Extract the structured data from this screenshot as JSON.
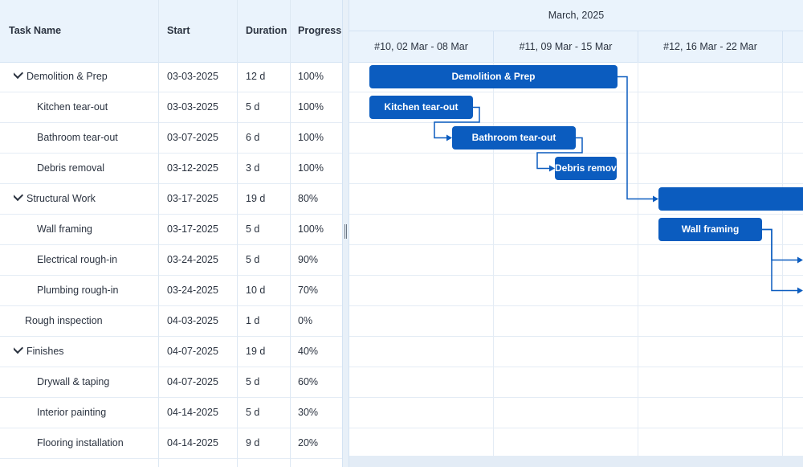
{
  "grid": {
    "columns": [
      {
        "key": "name",
        "label": "Task Name"
      },
      {
        "key": "start",
        "label": "Start"
      },
      {
        "key": "duration",
        "label": "Duration"
      },
      {
        "key": "progress",
        "label": "Progress"
      }
    ],
    "rows": [
      {
        "name": "Demolition & Prep",
        "start": "03-03-2025",
        "duration": "12 d",
        "progress": "100%",
        "level": 0,
        "parent": true
      },
      {
        "name": "Kitchen tear-out",
        "start": "03-03-2025",
        "duration": "5 d",
        "progress": "100%",
        "level": 1,
        "parent": false
      },
      {
        "name": "Bathroom tear-out",
        "start": "03-07-2025",
        "duration": "6 d",
        "progress": "100%",
        "level": 1,
        "parent": false
      },
      {
        "name": "Debris removal",
        "start": "03-12-2025",
        "duration": "3 d",
        "progress": "100%",
        "level": 1,
        "parent": false
      },
      {
        "name": "Structural Work",
        "start": "03-17-2025",
        "duration": "19 d",
        "progress": "80%",
        "level": 0,
        "parent": true
      },
      {
        "name": "Wall framing",
        "start": "03-17-2025",
        "duration": "5 d",
        "progress": "100%",
        "level": 1,
        "parent": false
      },
      {
        "name": "Electrical rough-in",
        "start": "03-24-2025",
        "duration": "5 d",
        "progress": "90%",
        "level": 1,
        "parent": false
      },
      {
        "name": "Plumbing rough-in",
        "start": "03-24-2025",
        "duration": "10 d",
        "progress": "70%",
        "level": 1,
        "parent": false
      },
      {
        "name": "Rough inspection",
        "start": "04-03-2025",
        "duration": "1 d",
        "progress": "0%",
        "level": 0,
        "parent": false
      },
      {
        "name": "Finishes",
        "start": "04-07-2025",
        "duration": "19 d",
        "progress": "40%",
        "level": 0,
        "parent": true
      },
      {
        "name": "Drywall & taping",
        "start": "04-07-2025",
        "duration": "5 d",
        "progress": "60%",
        "level": 1,
        "parent": false
      },
      {
        "name": "Interior painting",
        "start": "04-14-2025",
        "duration": "5 d",
        "progress": "30%",
        "level": 1,
        "parent": false
      },
      {
        "name": "Flooring installation",
        "start": "04-14-2025",
        "duration": "9 d",
        "progress": "20%",
        "level": 1,
        "parent": false
      }
    ]
  },
  "timeline": {
    "month_label": "March, 2025",
    "weeks": [
      "#10, 02 Mar - 08 Mar",
      "#11, 09 Mar - 15 Mar",
      "#12, 16 Mar - 22 Mar",
      ""
    ],
    "bars": [
      {
        "row": 0,
        "label": "Demolition & Prep",
        "start_date": "2025-03-03",
        "days": 12
      },
      {
        "row": 1,
        "label": "Kitchen tear-out",
        "start_date": "2025-03-03",
        "days": 5
      },
      {
        "row": 2,
        "label": "Bathroom tear-out",
        "start_date": "2025-03-07",
        "days": 6
      },
      {
        "row": 3,
        "label": "Debris removal",
        "start_date": "2025-03-12",
        "days": 3
      },
      {
        "row": 4,
        "label": "",
        "start_date": "2025-03-17",
        "days": 19
      },
      {
        "row": 5,
        "label": "Wall framing",
        "start_date": "2025-03-17",
        "days": 5
      }
    ],
    "links": [
      {
        "from": 1,
        "to": 2
      },
      {
        "from": 2,
        "to": 3
      },
      {
        "from": 0,
        "to": 4
      },
      {
        "from": 5,
        "to": 6
      },
      {
        "from": 5,
        "to": 7
      }
    ]
  },
  "colors": {
    "bar": "#0b5cbf",
    "header_bg": "#eaf3fc",
    "grid_line": "#e4ecf5"
  }
}
